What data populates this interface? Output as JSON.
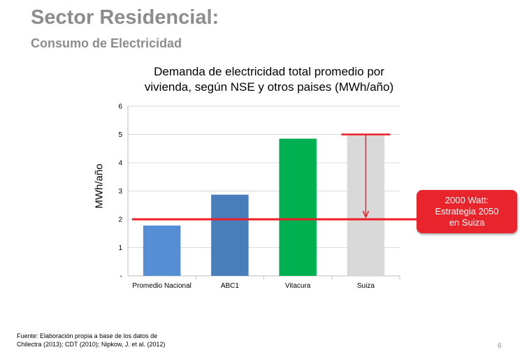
{
  "slide": {
    "title": "Sector Residencial:",
    "subtitle": "Consumo de Electricidad",
    "page_number": "6"
  },
  "source_note": {
    "line1": "Fuente: Elaboración propia a base de los datos de",
    "line2": "Chilectra (2013); CDT (2010); Nipkow, J. et al. (2012)"
  },
  "callout": {
    "line1": "2000 Watt:",
    "line2": "Estrategia 2050",
    "line3": "en Suiza",
    "color": "#e8242d"
  },
  "chart_data": {
    "type": "bar",
    "title_line1": "Demanda de electricidad total promedio por",
    "title_line2": "vivienda, según NSE y otros paises (MWh/año)",
    "xlabel": "",
    "ylabel": "MWh/año",
    "categories": [
      "Promedio Nacional",
      "ABC1",
      "Vitacura",
      "Suiza"
    ],
    "values": [
      1.78,
      2.87,
      4.85,
      5.0
    ],
    "colors": [
      "#558ed5",
      "#4a7ebb",
      "#00b050",
      "#d9d9d9"
    ],
    "ylim": [
      0,
      6
    ],
    "yticks": [
      "-",
      "1",
      "2",
      "3",
      "4",
      "5",
      "6"
    ],
    "grid": true,
    "legend": "none",
    "reference_line": {
      "value": 2,
      "color": "#ee1c24"
    },
    "reduction_arrow": {
      "from": 5,
      "to": 2,
      "color": "#ee1c24"
    }
  }
}
